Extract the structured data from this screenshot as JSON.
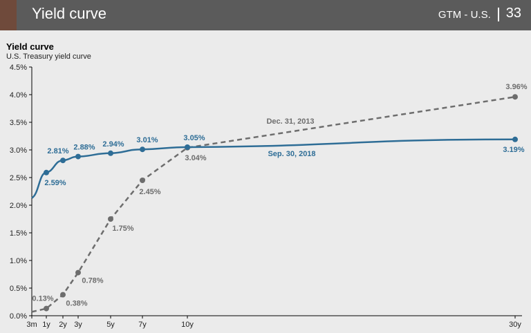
{
  "header": {
    "title": "Yield curve",
    "section": "GTM - U.S.",
    "page": "33"
  },
  "colors": {
    "header_bg": "#5b5b5b",
    "accent": "#6f4a3b",
    "panel_bg": "#ebebeb",
    "series_2018": "#2e6d96",
    "series_2013": "#6d6d6d"
  },
  "chart_data": {
    "type": "line",
    "title": "Yield curve",
    "subtitle": "U.S. Treasury yield curve",
    "xlabel": "",
    "ylabel": "",
    "ylim": [
      0,
      4.5
    ],
    "grid": false,
    "y_ticks": [
      0,
      0.5,
      1.0,
      1.5,
      2.0,
      2.5,
      3.0,
      3.5,
      4.0,
      4.5
    ],
    "y_tick_labels": [
      "0.0%",
      "0.5%",
      "1.0%",
      "1.5%",
      "2.0%",
      "2.5%",
      "3.0%",
      "3.5%",
      "4.0%",
      "4.5%"
    ],
    "x_values": [
      0.25,
      1,
      2,
      3,
      5,
      7,
      10,
      30
    ],
    "x_tick_labels": [
      "3m",
      "1y",
      "2y",
      "3y",
      "5y",
      "7y",
      "10y",
      "30y"
    ],
    "series": [
      {
        "name": "Sep. 30, 2018",
        "style": "solid",
        "x": [
          0.25,
          1,
          2,
          3,
          5,
          7,
          10,
          30
        ],
        "values": [
          2.13,
          2.59,
          2.81,
          2.88,
          2.94,
          3.01,
          3.05,
          3.19
        ],
        "value_labels": [
          "",
          "2.59%",
          "2.81%",
          "2.88%",
          "2.94%",
          "3.01%",
          "3.05%",
          "3.19%"
        ]
      },
      {
        "name": "Dec. 31, 2013",
        "style": "dashed",
        "x": [
          0.25,
          1,
          2,
          3,
          5,
          7,
          10,
          30
        ],
        "values": [
          0.07,
          0.13,
          0.38,
          0.78,
          1.75,
          2.45,
          3.04,
          3.96
        ],
        "value_labels": [
          "",
          "0.13%",
          "0.38%",
          "0.78%",
          "1.75%",
          "2.45%",
          "3.04%",
          "3.96%"
        ]
      }
    ]
  }
}
